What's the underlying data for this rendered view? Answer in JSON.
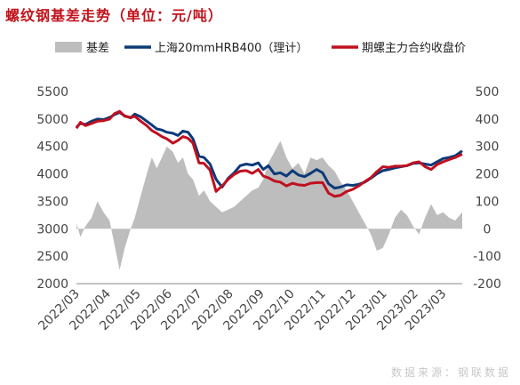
{
  "title": "螺纹钢基差走势（单位：元/吨）",
  "source_note": "数据来源：钢联数据",
  "colors": {
    "basis": "#bdbdbd",
    "spot": "#0b3a78",
    "futures": "#c00f1f",
    "axis": "#444444",
    "title": "#c0141c"
  },
  "chart_data": {
    "type": "line",
    "title": "螺纹钢基差走势（单位：元/吨）",
    "x_ticks": [
      "2022/03",
      "2022/04",
      "2022/05",
      "2022/06",
      "2022/07",
      "2022/08",
      "2022/09",
      "2022/10",
      "2022/11",
      "2022/12",
      "2023/01",
      "2023/02",
      "2023/03"
    ],
    "x_range": [
      "2022-03-01",
      "2023-03-20"
    ],
    "y_left": {
      "min": 2000,
      "max": 5500,
      "ticks": [
        2000,
        2500,
        3000,
        3500,
        4000,
        4500,
        5000,
        5500
      ]
    },
    "y_right": {
      "min": -200,
      "max": 500,
      "ticks": [
        -200,
        -100,
        0,
        100,
        200,
        300,
        400,
        500
      ]
    },
    "legend": {
      "position": "top",
      "entries": [
        "基差",
        "上海20mmHRB400（理计）",
        "期螺主力合约收盘价"
      ]
    },
    "series": [
      {
        "name": "基差",
        "type": "area",
        "axis": "right",
        "x": [
          "2022-03-01",
          "2022-03-05",
          "2022-03-10",
          "2022-03-16",
          "2022-03-22",
          "2022-03-28",
          "2022-04-03",
          "2022-04-08",
          "2022-04-13",
          "2022-04-18",
          "2022-04-24",
          "2022-04-28",
          "2022-05-04",
          "2022-05-10",
          "2022-05-15",
          "2022-05-20",
          "2022-05-25",
          "2022-05-30",
          "2022-06-05",
          "2022-06-10",
          "2022-06-15",
          "2022-06-20",
          "2022-06-25",
          "2022-07-01",
          "2022-07-06",
          "2022-07-12",
          "2022-07-18",
          "2022-07-24",
          "2022-07-30",
          "2022-08-05",
          "2022-08-11",
          "2022-08-17",
          "2022-08-23",
          "2022-08-29",
          "2022-09-03",
          "2022-09-08",
          "2022-09-14",
          "2022-09-20",
          "2022-09-26",
          "2022-10-02",
          "2022-10-08",
          "2022-10-14",
          "2022-10-20",
          "2022-10-26",
          "2022-11-01",
          "2022-11-07",
          "2022-11-13",
          "2022-11-19",
          "2022-11-25",
          "2022-12-01",
          "2022-12-07",
          "2022-12-13",
          "2022-12-19",
          "2022-12-25",
          "2022-12-31",
          "2023-01-06",
          "2023-01-12",
          "2023-01-18",
          "2023-01-24",
          "2023-01-30",
          "2023-02-05",
          "2023-02-11",
          "2023-02-17",
          "2023-02-23",
          "2023-03-01",
          "2023-03-07",
          "2023-03-13",
          "2023-03-20"
        ],
        "values": [
          20,
          -30,
          10,
          40,
          100,
          60,
          30,
          -60,
          -150,
          -70,
          0,
          40,
          120,
          200,
          260,
          220,
          260,
          300,
          280,
          240,
          260,
          200,
          180,
          120,
          140,
          100,
          80,
          60,
          70,
          80,
          100,
          120,
          140,
          150,
          180,
          240,
          280,
          320,
          260,
          220,
          240,
          200,
          260,
          250,
          260,
          230,
          210,
          170,
          140,
          100,
          60,
          20,
          -20,
          -80,
          -70,
          -20,
          40,
          70,
          50,
          10,
          -20,
          40,
          90,
          50,
          60,
          40,
          30,
          60
        ]
      },
      {
        "name": "上海20mmHRB400（理计）",
        "type": "line",
        "axis": "left",
        "x": [
          "2022-03-01",
          "2022-03-05",
          "2022-03-10",
          "2022-03-16",
          "2022-03-22",
          "2022-03-28",
          "2022-04-03",
          "2022-04-08",
          "2022-04-13",
          "2022-04-18",
          "2022-04-24",
          "2022-04-28",
          "2022-05-04",
          "2022-05-10",
          "2022-05-15",
          "2022-05-20",
          "2022-05-25",
          "2022-05-30",
          "2022-06-05",
          "2022-06-10",
          "2022-06-15",
          "2022-06-20",
          "2022-06-25",
          "2022-07-01",
          "2022-07-06",
          "2022-07-12",
          "2022-07-18",
          "2022-07-24",
          "2022-07-30",
          "2022-08-05",
          "2022-08-11",
          "2022-08-17",
          "2022-08-23",
          "2022-08-29",
          "2022-09-03",
          "2022-09-08",
          "2022-09-14",
          "2022-09-20",
          "2022-09-26",
          "2022-10-02",
          "2022-10-08",
          "2022-10-14",
          "2022-10-20",
          "2022-10-26",
          "2022-11-01",
          "2022-11-07",
          "2022-11-13",
          "2022-11-19",
          "2022-11-25",
          "2022-12-01",
          "2022-12-07",
          "2022-12-13",
          "2022-12-19",
          "2022-12-25",
          "2022-12-31",
          "2023-01-06",
          "2023-01-12",
          "2023-01-18",
          "2023-01-24",
          "2023-01-30",
          "2023-02-05",
          "2023-02-11",
          "2023-02-17",
          "2023-02-23",
          "2023-03-01",
          "2023-03-07",
          "2023-03-13",
          "2023-03-20"
        ],
        "values": [
          4850,
          4920,
          4900,
          4960,
          5000,
          4990,
          5030,
          5080,
          5120,
          5060,
          5020,
          5090,
          5040,
          4960,
          4890,
          4820,
          4800,
          4760,
          4740,
          4700,
          4780,
          4760,
          4640,
          4320,
          4300,
          4180,
          3900,
          3760,
          3920,
          4020,
          4150,
          4180,
          4160,
          4200,
          4080,
          4150,
          4000,
          4020,
          3960,
          4060,
          3980,
          3950,
          4010,
          4080,
          4020,
          3820,
          3740,
          3760,
          3800,
          3790,
          3810,
          3850,
          3920,
          4000,
          4060,
          4080,
          4110,
          4130,
          4150,
          4190,
          4200,
          4180,
          4160,
          4220,
          4280,
          4300,
          4330,
          4420
        ]
      },
      {
        "name": "期螺主力合约收盘价",
        "type": "line",
        "axis": "left",
        "x": [
          "2022-03-01",
          "2022-03-05",
          "2022-03-10",
          "2022-03-16",
          "2022-03-22",
          "2022-03-28",
          "2022-04-03",
          "2022-04-08",
          "2022-04-13",
          "2022-04-18",
          "2022-04-24",
          "2022-04-28",
          "2022-05-04",
          "2022-05-10",
          "2022-05-15",
          "2022-05-20",
          "2022-05-25",
          "2022-05-30",
          "2022-06-05",
          "2022-06-10",
          "2022-06-15",
          "2022-06-20",
          "2022-06-25",
          "2022-07-01",
          "2022-07-06",
          "2022-07-12",
          "2022-07-18",
          "2022-07-24",
          "2022-07-30",
          "2022-08-05",
          "2022-08-11",
          "2022-08-17",
          "2022-08-23",
          "2022-08-29",
          "2022-09-03",
          "2022-09-08",
          "2022-09-14",
          "2022-09-20",
          "2022-09-26",
          "2022-10-02",
          "2022-10-08",
          "2022-10-14",
          "2022-10-20",
          "2022-10-26",
          "2022-11-01",
          "2022-11-07",
          "2022-11-13",
          "2022-11-19",
          "2022-11-25",
          "2022-12-01",
          "2022-12-07",
          "2022-12-13",
          "2022-12-19",
          "2022-12-25",
          "2022-12-31",
          "2023-01-06",
          "2023-01-12",
          "2023-01-18",
          "2023-01-24",
          "2023-01-30",
          "2023-02-05",
          "2023-02-11",
          "2023-02-17",
          "2023-02-23",
          "2023-03-01",
          "2023-03-07",
          "2023-03-13",
          "2023-03-20"
        ],
        "values": [
          4830,
          4940,
          4880,
          4920,
          4960,
          4970,
          5000,
          5100,
          5140,
          5050,
          5030,
          5050,
          4960,
          4880,
          4790,
          4740,
          4680,
          4640,
          4560,
          4610,
          4680,
          4650,
          4560,
          4200,
          4190,
          4070,
          3680,
          3780,
          3900,
          3990,
          4050,
          4060,
          4010,
          4080,
          3960,
          3930,
          3870,
          3850,
          3780,
          3830,
          3800,
          3790,
          3830,
          3840,
          3840,
          3650,
          3590,
          3610,
          3680,
          3720,
          3780,
          3860,
          3930,
          4040,
          4130,
          4120,
          4140,
          4140,
          4150,
          4200,
          4220,
          4130,
          4080,
          4170,
          4220,
          4260,
          4300,
          4360
        ]
      }
    ]
  }
}
